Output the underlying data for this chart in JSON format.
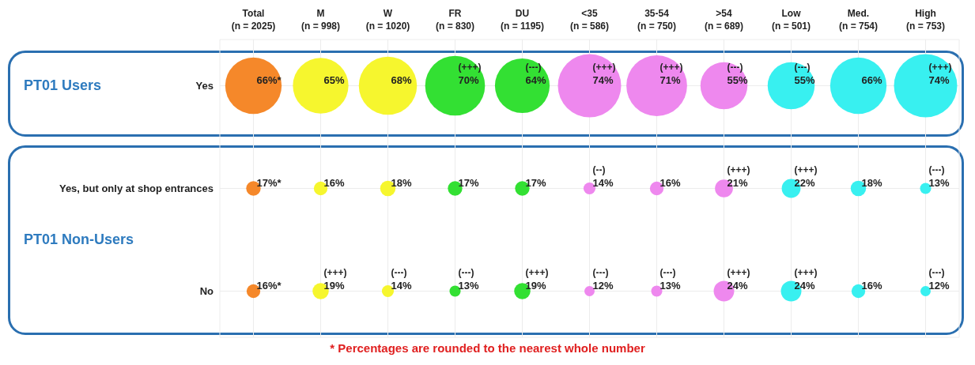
{
  "chart_data": {
    "type": "heatmap",
    "categories": [
      "Total (n = 2025)",
      "M (n = 998)",
      "W (n = 1020)",
      "FR (n = 830)",
      "DU (n = 1195)",
      "<35 (n = 586)",
      "35-54 (n = 750)",
      ">54 (n = 689)",
      "Low (n = 501)",
      "Med. (n = 754)",
      "High (n = 753)"
    ],
    "y_categories": [
      "Yes",
      "Yes, but only at shop entrances",
      "No"
    ],
    "colors": [
      "#f5882a",
      "#f6f62e",
      "#f6f62e",
      "#33e033",
      "#33e033",
      "#ee88ee",
      "#ee88ee",
      "#ee88ee",
      "#38f0f0",
      "#38f0f0",
      "#38f0f0"
    ],
    "cells": [
      [
        66,
        65,
        68,
        70,
        64,
        74,
        71,
        55,
        55,
        66,
        74
      ],
      [
        17,
        16,
        18,
        17,
        17,
        14,
        16,
        21,
        22,
        18,
        13
      ],
      [
        16,
        19,
        14,
        13,
        19,
        12,
        13,
        24,
        24,
        16,
        12
      ]
    ],
    "cell_labels": [
      [
        "66%*",
        "65%",
        "68%",
        "(+++) 70%",
        "(---) 64%",
        "(+++) 74%",
        "(+++) 71%",
        "(---) 55%",
        "(---) 55%",
        "66%",
        "(+++) 74%"
      ],
      [
        "17%*",
        "16%",
        "18%",
        "17%",
        "17%",
        "(--) 14%",
        "16%",
        "(+++) 21%",
        "(+++) 22%",
        "18%",
        "(---) 13%"
      ],
      [
        "16%*",
        "(+++) 19%",
        "(---) 14%",
        "(---) 13%",
        "(+++) 19%",
        "(---) 12%",
        "(---) 13%",
        "(+++) 24%",
        "(+++) 24%",
        "16%",
        "(---) 12%"
      ]
    ],
    "grid": true,
    "annotations": [
      "PT01 Users",
      "PT01 Non-Users",
      "* Percentages are rounded to the nearest whole number"
    ]
  }
}
